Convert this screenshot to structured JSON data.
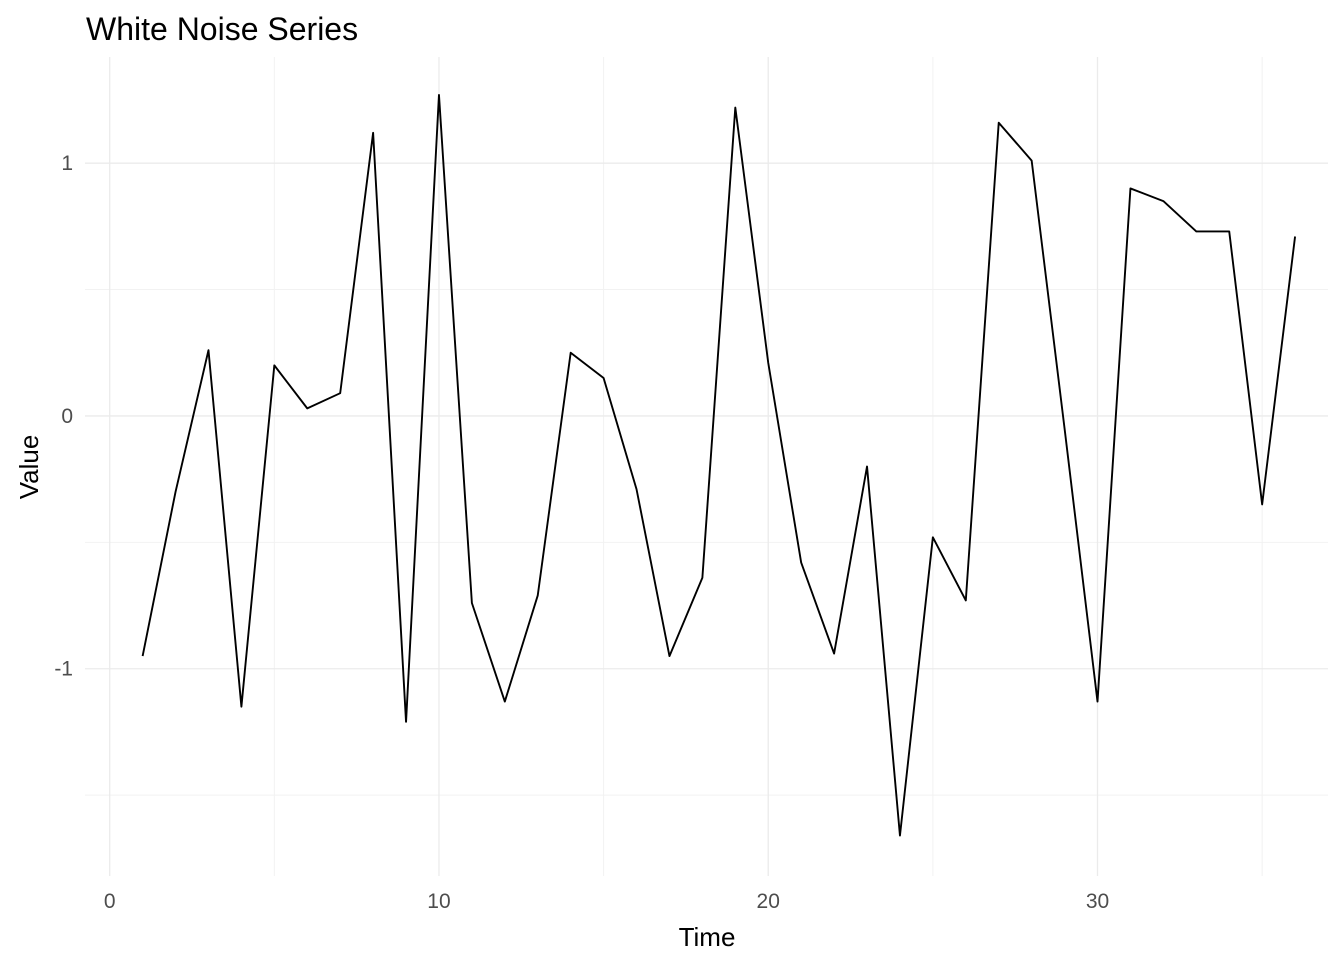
{
  "chart_data": {
    "type": "line",
    "title": "White Noise Series",
    "xlabel": "Time",
    "ylabel": "Value",
    "xlim": [
      -0.75,
      37.0
    ],
    "ylim": [
      -1.82,
      1.42
    ],
    "x_ticks": [
      0,
      10,
      20,
      30
    ],
    "x_tick_labels": [
      "0",
      "10",
      "20",
      "30"
    ],
    "x_minor_ticks": [
      5,
      15,
      25,
      35
    ],
    "y_ticks": [
      1,
      0,
      -1
    ],
    "y_tick_labels": [
      "1",
      "0",
      "-1"
    ],
    "y_minor_ticks": [
      0.5,
      -0.5,
      -1.5
    ],
    "grid": true,
    "legend": "none",
    "line_color": "#000000",
    "series": [
      {
        "x": [
          1,
          2,
          3,
          4,
          5,
          6,
          7,
          8,
          9,
          10,
          11,
          12,
          13,
          14,
          15,
          16,
          17,
          18,
          19,
          20,
          21,
          22,
          23,
          24,
          25,
          26,
          27,
          28,
          29,
          30,
          31,
          32,
          33,
          34,
          35,
          36
        ],
        "values": [
          -0.95,
          -0.3,
          0.26,
          -1.15,
          0.2,
          0.03,
          0.09,
          1.12,
          -1.21,
          1.27,
          -0.74,
          -1.13,
          -0.71,
          0.25,
          0.15,
          -0.29,
          -0.95,
          -0.64,
          1.22,
          0.21,
          -0.58,
          -0.94,
          -0.2,
          -1.66,
          -0.48,
          -0.73,
          1.16,
          1.01,
          -0.05,
          -1.13,
          0.9,
          0.85,
          0.73,
          0.73,
          -0.35,
          0.71
        ]
      }
    ]
  }
}
